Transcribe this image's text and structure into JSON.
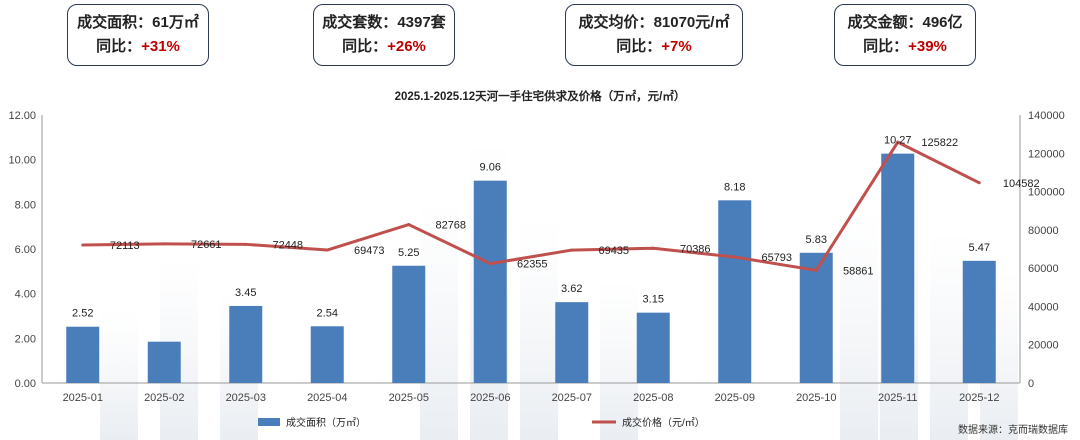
{
  "kpis": [
    {
      "label": "成交面积：",
      "value": "61万㎡",
      "yoy_label": "同比：",
      "yoy": "+31%"
    },
    {
      "label": "成交套数：",
      "value": "4397套",
      "yoy_label": "同比：",
      "yoy": "+26%"
    },
    {
      "label": "成交均价：",
      "value": "81070元/㎡",
      "yoy_label": "同比：",
      "yoy": "+7%"
    },
    {
      "label": "成交金额：",
      "value": "496亿",
      "yoy_label": "同比：",
      "yoy": "+39%"
    }
  ],
  "chart_data": {
    "type": "bar+line",
    "title": "2025.1-2025.12天河一手住宅供求及价格（万㎡，元/㎡）",
    "categories": [
      "2025-01",
      "2025-02",
      "2025-03",
      "2025-04",
      "2025-05",
      "2025-06",
      "2025-07",
      "2025-08",
      "2025-09",
      "2025-10",
      "2025-11",
      "2025-12"
    ],
    "series": [
      {
        "name": "成交面积（万㎡）",
        "type": "bar",
        "axis": "left",
        "color": "#4a7ebb",
        "values": [
          2.52,
          1.85,
          3.45,
          2.54,
          5.25,
          9.06,
          3.62,
          3.15,
          8.18,
          5.83,
          10.27,
          5.47
        ],
        "labels": [
          "2.52",
          "",
          "3.45",
          "2.54",
          "5.25",
          "9.06",
          "3.62",
          "3.15",
          "8.18",
          "5.83",
          "10.27",
          "5.47"
        ]
      },
      {
        "name": "成交价格（元/㎡）",
        "type": "line",
        "axis": "right",
        "color": "#c0504d",
        "values": [
          72113,
          72661,
          72448,
          69473,
          82768,
          62355,
          69435,
          70386,
          65793,
          58861,
          125822,
          104582
        ],
        "labels": [
          "72113",
          "72661",
          "72448",
          "69473",
          "82768",
          "62355",
          "69435",
          "70386",
          "65793",
          "58861",
          "125822",
          "104582"
        ]
      }
    ],
    "y_left": {
      "min": 0,
      "max": 12,
      "step": 2,
      "ticks": [
        "0.00",
        "2.00",
        "4.00",
        "6.00",
        "8.00",
        "10.00",
        "12.00"
      ]
    },
    "y_right": {
      "min": 0,
      "max": 140000,
      "step": 20000,
      "ticks": [
        "0",
        "20000",
        "40000",
        "60000",
        "80000",
        "100000",
        "120000",
        "140000"
      ]
    },
    "legend_position": "bottom"
  },
  "source": "数据来源：克而瑞数据库"
}
